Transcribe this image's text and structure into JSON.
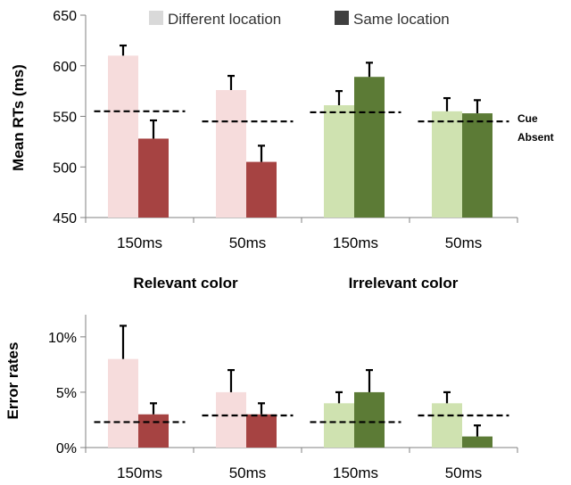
{
  "legend": [
    {
      "label": "Different location"
    },
    {
      "label": "Same location"
    }
  ],
  "colors": {
    "relevant_different": "#f6dcdc",
    "relevant_same": "#a64342",
    "irrelevant_different": "#cfe2b0",
    "irrelevant_same": "#5c7b36",
    "axis": "#808080",
    "baseline": "#000000"
  },
  "annotation": {
    "line1": "Cue",
    "line2": "Absent"
  },
  "group_labels": [
    "Relevant color",
    "Irrelevant color"
  ],
  "chart_data": [
    {
      "type": "bar",
      "ylabel": "Mean RTs (ms)",
      "ylim": [
        450,
        650
      ],
      "yticks": [
        "450",
        "500",
        "550",
        "600",
        "650"
      ],
      "categories": [
        "150ms",
        "50ms",
        "150ms",
        "50ms"
      ],
      "groups": [
        "Relevant color",
        "Relevant color",
        "Irrelevant color",
        "Irrelevant color"
      ],
      "series": [
        {
          "name": "Different location",
          "values": [
            610,
            576,
            561,
            555
          ],
          "errors": [
            10,
            14,
            14,
            13
          ]
        },
        {
          "name": "Same location",
          "values": [
            528,
            505,
            589,
            553
          ],
          "errors": [
            18,
            16,
            14,
            13
          ]
        }
      ],
      "cue_absent": [
        555,
        545,
        554,
        545
      ],
      "legend": "top"
    },
    {
      "type": "bar",
      "ylabel": "Error rates",
      "ylim": [
        0,
        12
      ],
      "yticks": [
        "0%",
        "5%",
        "10%"
      ],
      "categories": [
        "150ms",
        "50ms",
        "150ms",
        "50ms"
      ],
      "series": [
        {
          "name": "Different location",
          "values": [
            8,
            5,
            4,
            4
          ],
          "errors": [
            3,
            2,
            1,
            1
          ]
        },
        {
          "name": "Same location",
          "values": [
            3,
            3,
            5,
            1
          ],
          "errors": [
            1,
            1,
            2,
            1
          ]
        }
      ],
      "cue_absent": [
        2.3,
        2.9,
        2.3,
        2.9
      ]
    }
  ]
}
